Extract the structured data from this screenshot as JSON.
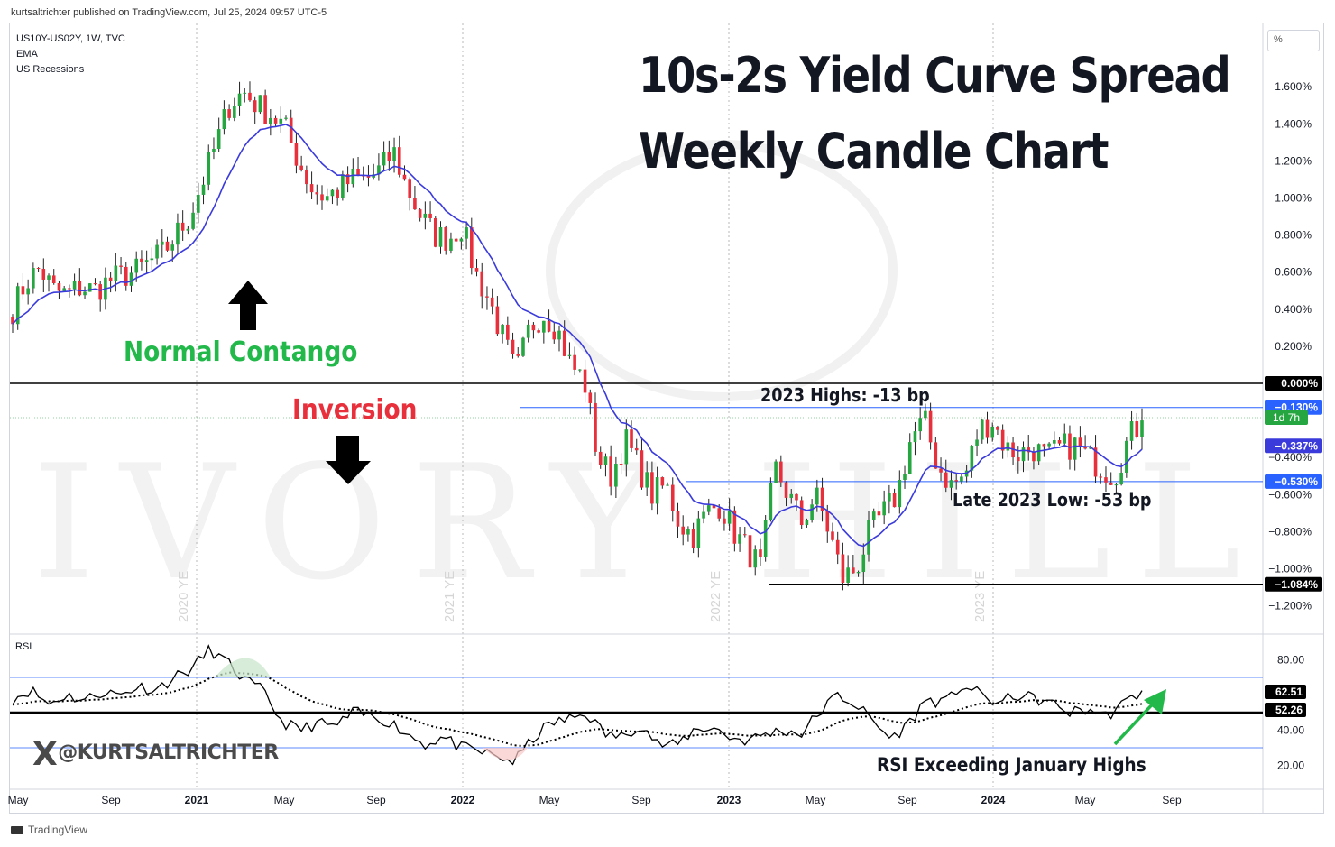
{
  "publisher": "kurtsaltrichter published on TradingView.com, Jul 25, 2024 09:57 UTC-5",
  "legend": [
    "US10Y-US02Y, 1W, TVC",
    "EMA",
    "US Recessions"
  ],
  "title_line1": "10s-2s Yield Curve Spread",
  "title_line2": "Weekly Candle Chart",
  "unit": "%",
  "annotations": {
    "normal_contango": "Normal Contango",
    "inversion": "Inversion",
    "highs_2023": "2023 Highs: -13 bp",
    "low_2023": "Late 2023 Low: -53 bp",
    "rsi_note": "RSI Exceeding January Highs"
  },
  "rsi_label": "RSI",
  "brand": "@KURTSALTRICHTER",
  "footer": "TradingView",
  "colors": {
    "up": "#26a641",
    "down": "#e8303c",
    "ema": "#3b3bdc",
    "level": "#2962ff",
    "arrow_green": "#22b84a"
  },
  "chart_data": {
    "type": "candlestick",
    "series_name": "US10Y-US02Y, 1W, TVC",
    "unit": "%",
    "ylim": [
      -1.3,
      1.8
    ],
    "y_ticks": [
      1.6,
      1.4,
      1.2,
      1.0,
      0.8,
      0.6,
      0.4,
      0.2,
      -0.4,
      -0.6,
      -0.8,
      -1.0,
      -1.2
    ],
    "y_tick_labels": [
      "1.600%",
      "1.400%",
      "1.200%",
      "1.000%",
      "0.800%",
      "0.600%",
      "0.400%",
      "0.200%",
      "−0.400%",
      "−0.600%",
      "−0.800%",
      "−1.000%",
      "−1.200%"
    ],
    "x_labels": [
      "May",
      "Sep",
      "2021",
      "May",
      "Sep",
      "2022",
      "May",
      "Sep",
      "2023",
      "May",
      "Sep",
      "2024",
      "May",
      "Sep"
    ],
    "x_bold": [
      "2021",
      "2022",
      "2023",
      "2024"
    ],
    "year_end_labels": [
      "2020 YE",
      "2021 YE",
      "2022 YE",
      "2023 YE"
    ],
    "price_levels": [
      {
        "value": 0.0,
        "label": "0.000%",
        "style": "black"
      },
      {
        "value": -0.13,
        "label": "−0.130%",
        "style": "blue"
      },
      {
        "value": -0.337,
        "label": "−0.337%",
        "style": "ema"
      },
      {
        "value": -0.53,
        "label": "−0.530%",
        "style": "blue"
      },
      {
        "value": -1.084,
        "label": "−1.084%",
        "style": "black"
      }
    ],
    "countdown_label": "1d 7h",
    "close_anchors": [
      0.4,
      0.55,
      0.62,
      0.5,
      0.48,
      0.52,
      0.5,
      0.55,
      0.58,
      0.6,
      0.65,
      0.7,
      0.8,
      0.9,
      1.1,
      1.3,
      1.52,
      1.57,
      1.5,
      1.45,
      1.38,
      1.2,
      1.05,
      1.0,
      1.05,
      1.1,
      1.1,
      1.15,
      1.25,
      1.05,
      0.9,
      0.8,
      0.78,
      0.85,
      0.6,
      0.45,
      0.25,
      0.05,
      0.3,
      0.38,
      0.3,
      0.1,
      0.02,
      -0.4,
      -0.5,
      -0.3,
      -0.45,
      -0.6,
      -0.55,
      -0.75,
      -0.82,
      -0.7,
      -0.65,
      -0.8,
      -0.9,
      -1.0,
      -0.45,
      -0.6,
      -0.75,
      -0.6,
      -0.8,
      -1.05,
      -1.0,
      -0.8,
      -0.7,
      -0.6,
      -0.3,
      -0.2,
      -0.45,
      -0.55,
      -0.5,
      -0.25,
      -0.2,
      -0.35,
      -0.38,
      -0.35,
      -0.4,
      -0.35,
      -0.33,
      -0.4,
      -0.45,
      -0.5,
      -0.3,
      -0.2
    ],
    "rsi": {
      "label": "RSI",
      "ylim": [
        10,
        95
      ],
      "y_ticks": [
        80,
        40,
        20
      ],
      "y_tick_labels": [
        "80.00",
        "40.00",
        "20.00"
      ],
      "bands": [
        70,
        30
      ],
      "level": 50,
      "current_values": [
        62.51,
        52.26
      ],
      "current_labels": [
        "62.51",
        "52.26"
      ],
      "anchors": [
        58,
        63,
        55,
        60,
        57,
        62,
        60,
        65,
        63,
        70,
        75,
        86,
        78,
        68,
        62,
        45,
        40,
        44,
        42,
        50,
        48,
        45,
        38,
        32,
        36,
        30,
        28,
        25,
        22,
        35,
        44,
        46,
        50,
        38,
        36,
        44,
        32,
        31,
        40,
        42,
        36,
        34,
        38,
        40,
        38,
        50,
        60,
        55,
        45,
        35,
        44,
        58,
        55,
        66,
        60,
        55,
        60,
        58,
        55,
        50,
        52,
        48,
        55,
        62
      ]
    }
  }
}
